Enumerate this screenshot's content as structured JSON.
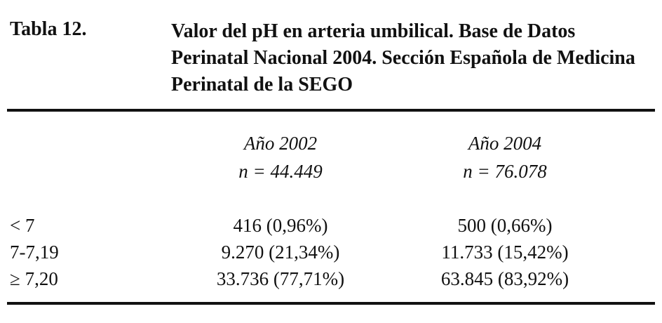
{
  "header": {
    "label": "Tabla 12.",
    "title": "Valor del pH en arteria umbilical. Base de Datos Perinatal Nacional 2004. Sección Española de Medicina Perinatal de la SEGO"
  },
  "table": {
    "columns": [
      {
        "year": "Año 2002",
        "n": "n = 44.449"
      },
      {
        "year": "Año 2004",
        "n": "n = 76.078"
      }
    ],
    "rows": [
      [
        "< 7",
        "416 (0,96%)",
        "500 (0,66%)"
      ],
      [
        "7-7,19",
        "9.270 (21,34%)",
        "11.733 (15,42%)"
      ],
      [
        "≥ 7,20",
        "33.736 (77,71%)",
        "63.845 (83,92%)"
      ]
    ]
  }
}
